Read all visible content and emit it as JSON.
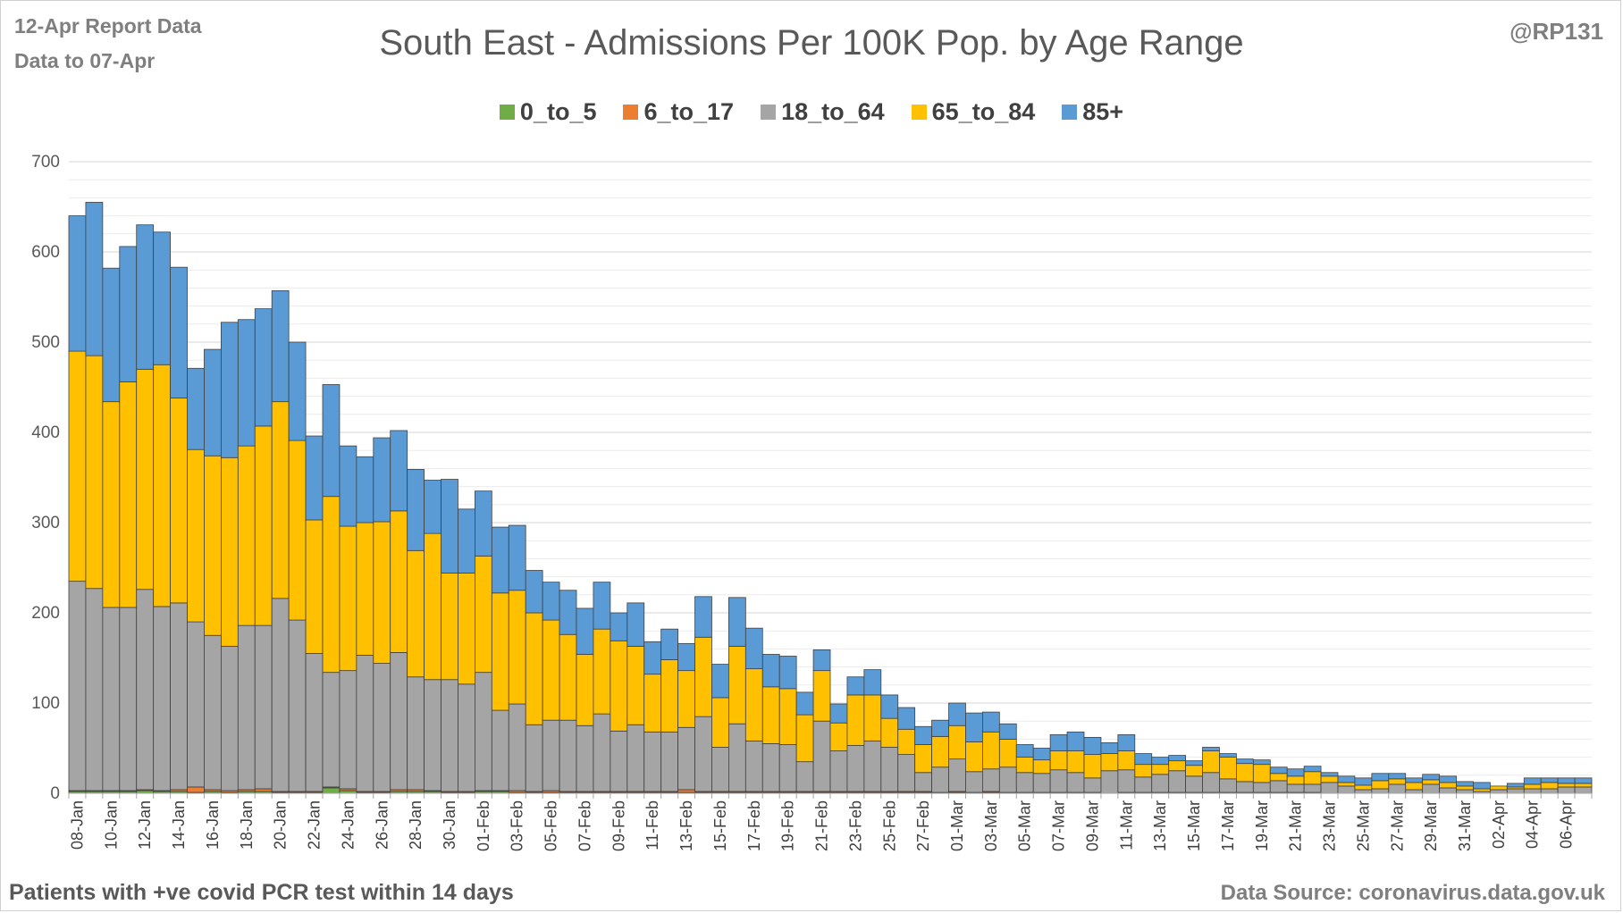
{
  "header": {
    "report_date": "12-Apr Report Data",
    "data_to": "Data to 07-Apr",
    "handle": "@RP131"
  },
  "footer": {
    "note": "Patients with  +ve covid PCR test within 14 days",
    "source": "Data Source: coronavirus.data.gov.uk"
  },
  "chart_data": {
    "type": "bar",
    "stacked": true,
    "title": "South East - Admissions Per 100K Pop. by Age Range",
    "xlabel": "",
    "ylabel": "",
    "ylim": [
      0,
      700
    ],
    "yticks": [
      0,
      100,
      200,
      300,
      400,
      500,
      600,
      700
    ],
    "grid": true,
    "legend_position": "top",
    "categories": [
      "08-Jan",
      "09-Jan",
      "10-Jan",
      "11-Jan",
      "12-Jan",
      "13-Jan",
      "14-Jan",
      "15-Jan",
      "16-Jan",
      "17-Jan",
      "18-Jan",
      "19-Jan",
      "20-Jan",
      "21-Jan",
      "22-Jan",
      "23-Jan",
      "24-Jan",
      "25-Jan",
      "26-Jan",
      "27-Jan",
      "28-Jan",
      "29-Jan",
      "30-Jan",
      "31-Jan",
      "01-Feb",
      "02-Feb",
      "03-Feb",
      "04-Feb",
      "05-Feb",
      "06-Feb",
      "07-Feb",
      "08-Feb",
      "09-Feb",
      "10-Feb",
      "11-Feb",
      "12-Feb",
      "13-Feb",
      "14-Feb",
      "15-Feb",
      "16-Feb",
      "17-Feb",
      "18-Feb",
      "19-Feb",
      "20-Feb",
      "21-Feb",
      "22-Feb",
      "23-Feb",
      "24-Feb",
      "25-Feb",
      "26-Feb",
      "27-Feb",
      "28-Feb",
      "01-Mar",
      "02-Mar",
      "03-Mar",
      "04-Mar",
      "05-Mar",
      "06-Mar",
      "07-Mar",
      "08-Mar",
      "09-Mar",
      "10-Mar",
      "11-Mar",
      "12-Mar",
      "13-Mar",
      "14-Mar",
      "15-Mar",
      "16-Mar",
      "17-Mar",
      "18-Mar",
      "19-Mar",
      "20-Mar",
      "21-Mar",
      "22-Mar",
      "23-Mar",
      "24-Mar",
      "25-Mar",
      "26-Mar",
      "27-Mar",
      "28-Mar",
      "29-Mar",
      "30-Mar",
      "31-Mar",
      "01-Apr",
      "02-Apr",
      "03-Apr",
      "04-Apr",
      "05-Apr",
      "06-Apr",
      "07-Apr"
    ],
    "tick_labels": [
      "08-Jan",
      "10-Jan",
      "12-Jan",
      "14-Jan",
      "16-Jan",
      "18-Jan",
      "20-Jan",
      "22-Jan",
      "24-Jan",
      "26-Jan",
      "28-Jan",
      "30-Jan",
      "01-Feb",
      "03-Feb",
      "05-Feb",
      "07-Feb",
      "09-Feb",
      "11-Feb",
      "13-Feb",
      "15-Feb",
      "17-Feb",
      "19-Feb",
      "21-Feb",
      "23-Feb",
      "25-Feb",
      "27-Feb",
      "01-Mar",
      "03-Mar",
      "05-Mar",
      "07-Mar",
      "09-Mar",
      "11-Mar",
      "13-Mar",
      "15-Mar",
      "17-Mar",
      "19-Mar",
      "21-Mar",
      "23-Mar",
      "25-Mar",
      "27-Mar",
      "29-Mar",
      "31-Mar",
      "02-Apr",
      "04-Apr",
      "06-Apr"
    ],
    "series": [
      {
        "name": "0_to_5",
        "color": "#70ad47",
        "values": [
          2,
          2,
          2,
          2,
          3,
          2,
          2,
          1,
          2,
          1,
          2,
          2,
          1,
          1,
          1,
          6,
          3,
          1,
          1,
          2,
          2,
          2,
          1,
          1,
          2,
          2,
          1,
          1,
          1,
          1,
          1,
          1,
          1,
          1,
          1,
          1,
          1,
          1,
          1,
          1,
          1,
          1,
          1,
          1,
          1,
          1,
          1,
          1,
          1,
          1,
          1,
          1,
          1,
          1,
          1,
          1,
          1,
          1,
          1,
          1,
          1,
          0,
          1,
          1,
          1,
          1,
          1,
          1,
          1,
          1,
          1,
          1,
          1,
          1,
          0,
          0,
          0,
          0,
          0,
          0,
          0,
          0,
          0,
          0,
          0,
          0,
          0,
          0,
          0,
          0
        ]
      },
      {
        "name": "6_to_17",
        "color": "#ed7d31",
        "values": [
          1,
          1,
          1,
          1,
          1,
          1,
          2,
          6,
          2,
          2,
          2,
          3,
          1,
          1,
          1,
          1,
          2,
          1,
          1,
          2,
          2,
          1,
          1,
          1,
          1,
          1,
          2,
          1,
          2,
          1,
          1,
          1,
          1,
          1,
          1,
          1,
          3,
          1,
          1,
          1,
          1,
          1,
          1,
          1,
          1,
          1,
          1,
          1,
          1,
          1,
          1,
          0,
          1,
          0,
          1,
          0,
          0,
          0,
          0,
          0,
          0,
          0,
          0,
          0,
          0,
          0,
          0,
          0,
          0,
          0,
          0,
          0,
          0,
          0,
          0,
          0,
          0,
          0,
          0,
          0,
          0,
          0,
          0,
          0,
          0,
          0,
          0,
          0,
          0,
          0
        ]
      },
      {
        "name": "18_to_64",
        "color": "#a5a5a5",
        "values": [
          232,
          224,
          203,
          203,
          222,
          204,
          207,
          183,
          171,
          160,
          182,
          181,
          214,
          190,
          153,
          127,
          131,
          151,
          142,
          152,
          125,
          123,
          124,
          119,
          131,
          89,
          96,
          74,
          78,
          79,
          73,
          86,
          67,
          74,
          66,
          66,
          69,
          83,
          49,
          75,
          56,
          53,
          52,
          33,
          78,
          45,
          51,
          56,
          49,
          41,
          21,
          28,
          36,
          23,
          25,
          28,
          22,
          21,
          25,
          22,
          16,
          25,
          25,
          17,
          20,
          24,
          18,
          22,
          15,
          12,
          11,
          13,
          9,
          9,
          12,
          8,
          4,
          5,
          10,
          4,
          10,
          6,
          4,
          2,
          4,
          5,
          5,
          5,
          7,
          7
        ]
      },
      {
        "name": "65_to_84",
        "color": "#ffc000",
        "values": [
          255,
          258,
          228,
          250,
          244,
          268,
          227,
          191,
          199,
          209,
          199,
          221,
          218,
          199,
          148,
          195,
          160,
          147,
          157,
          157,
          140,
          162,
          118,
          123,
          129,
          130,
          126,
          124,
          111,
          95,
          79,
          94,
          100,
          87,
          64,
          80,
          63,
          88,
          55,
          86,
          80,
          63,
          62,
          52,
          56,
          31,
          56,
          51,
          32,
          28,
          31,
          34,
          37,
          33,
          41,
          31,
          17,
          15,
          21,
          24,
          26,
          19,
          21,
          14,
          11,
          11,
          12,
          24,
          24,
          20,
          20,
          8,
          9,
          14,
          7,
          4,
          5,
          9,
          6,
          8,
          5,
          6,
          4,
          3,
          4,
          2,
          5,
          7,
          4,
          4
        ]
      },
      {
        "name": "85+",
        "color": "#5b9bd5",
        "values": [
          150,
          170,
          148,
          150,
          160,
          147,
          145,
          90,
          118,
          150,
          140,
          130,
          123,
          109,
          93,
          124,
          89,
          73,
          93,
          89,
          90,
          59,
          104,
          71,
          72,
          73,
          72,
          47,
          42,
          49,
          51,
          52,
          31,
          48,
          36,
          34,
          30,
          45,
          37,
          54,
          45,
          36,
          36,
          25,
          23,
          21,
          20,
          28,
          26,
          24,
          20,
          18,
          25,
          32,
          22,
          17,
          14,
          13,
          18,
          21,
          19,
          12,
          18,
          12,
          8,
          6,
          5,
          4,
          4,
          5,
          5,
          7,
          8,
          6,
          4,
          7,
          8,
          8,
          6,
          5,
          6,
          7,
          5,
          7,
          0,
          4,
          7,
          5,
          6,
          6
        ]
      }
    ]
  }
}
